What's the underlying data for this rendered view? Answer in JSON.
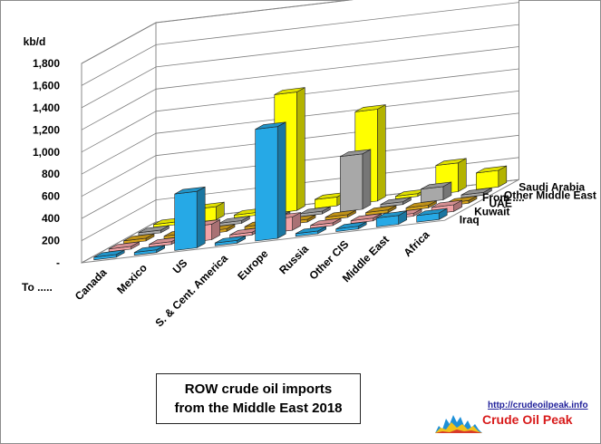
{
  "chart_data": {
    "type": "bar",
    "title": [
      "ROW crude oil imports",
      "from the Middle East 2018"
    ],
    "ylabel": "kb/d",
    "x_axis_label": "To .....",
    "depth_axis_label": "From ....",
    "ylim": [
      0,
      1800
    ],
    "yticks": [
      "-",
      "200",
      "400",
      "600",
      "800",
      "1,000",
      "1,200",
      "1,400",
      "1,600",
      "1,800"
    ],
    "categories": [
      "Canada",
      "Mexico",
      "US",
      "S. & Cent. America",
      "Europe",
      "Russia",
      "Other CIS",
      "Middle East",
      "Africa"
    ],
    "series": [
      {
        "name": "Iraq",
        "color": "#26a9e6",
        "values": [
          0,
          0,
          510,
          0,
          1010,
          0,
          0,
          80,
          60
        ]
      },
      {
        "name": "Kuwait",
        "color": "#f2a2a6",
        "values": [
          0,
          0,
          140,
          0,
          120,
          0,
          0,
          0,
          60
        ]
      },
      {
        "name": "UAE",
        "color": "#d9a51a",
        "values": [
          0,
          0,
          0,
          0,
          0,
          0,
          0,
          0,
          0
        ]
      },
      {
        "name": "Other Middle East",
        "color": "#a8a8a8",
        "values": [
          0,
          0,
          0,
          0,
          0,
          500,
          0,
          120,
          0
        ]
      },
      {
        "name": "Saudi Arabia",
        "color": "#ffff00",
        "values": [
          0,
          120,
          0,
          1070,
          80,
          830,
          0,
          260,
          150
        ]
      }
    ]
  },
  "logo": {
    "url": "http://crudeoilpeak.info",
    "name": "Crude Oil Peak"
  }
}
